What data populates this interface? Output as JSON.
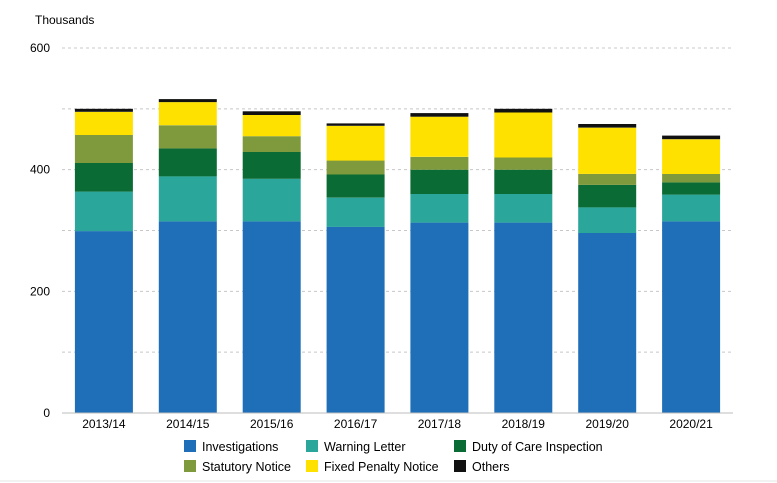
{
  "chart_data": {
    "type": "bar",
    "stacked": true,
    "unit_label": "Thousands",
    "categories": [
      "2013/14",
      "2014/15",
      "2015/16",
      "2016/17",
      "2017/18",
      "2018/19",
      "2019/20",
      "2020/21"
    ],
    "y_ticks": [
      0,
      200,
      400,
      600
    ],
    "ylim": [
      0,
      630
    ],
    "grid": "horizontal dashed",
    "legend_position": "bottom",
    "series": [
      {
        "name": "Investigations",
        "color": "#1f6fb8",
        "values": [
          299,
          315,
          315,
          306,
          313,
          313,
          296,
          315
        ]
      },
      {
        "name": "Warning Letter",
        "color": "#2ba69b",
        "values": [
          65,
          74,
          70,
          48,
          47,
          47,
          42,
          44
        ]
      },
      {
        "name": "Duty of Care Inspection",
        "color": "#0a6b34",
        "values": [
          47,
          46,
          44,
          38,
          40,
          40,
          37,
          20
        ]
      },
      {
        "name": "Statutory Notice",
        "color": "#7f9a3c",
        "values": [
          46,
          38,
          26,
          23,
          21,
          20,
          18,
          14
        ]
      },
      {
        "name": "Fixed Penalty Notice",
        "color": "#ffe100",
        "values": [
          38,
          38,
          35,
          57,
          66,
          74,
          76,
          57
        ]
      },
      {
        "name": "Others",
        "color": "#111111",
        "values": [
          5,
          5,
          6,
          4,
          6,
          6,
          6,
          6
        ]
      }
    ]
  }
}
